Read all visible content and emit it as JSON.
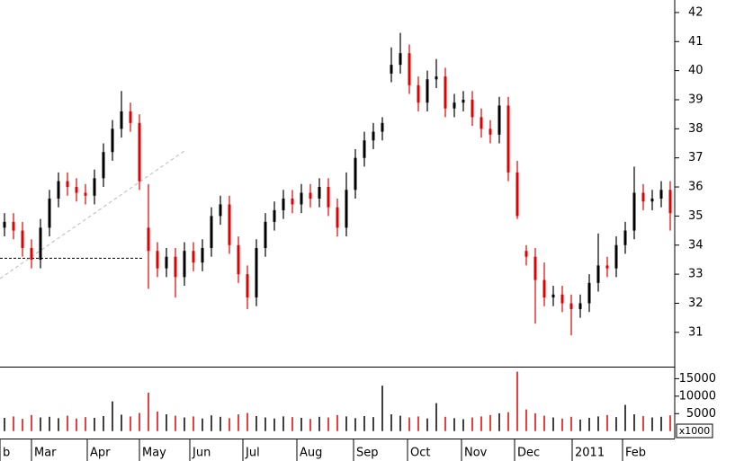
{
  "chart_data": {
    "type": "ohlc",
    "up_color": "#000000",
    "down_color": "#e00000",
    "xlim": [
      0,
      75
    ],
    "xticks": [
      {
        "value": 0,
        "label": "b"
      },
      {
        "value": 3.5,
        "label": "Mar"
      },
      {
        "value": 9.7,
        "label": "Apr"
      },
      {
        "value": 15.5,
        "label": "May"
      },
      {
        "value": 21.1,
        "label": "Jun"
      },
      {
        "value": 27,
        "label": "Jul"
      },
      {
        "value": 33,
        "label": "Aug"
      },
      {
        "value": 39.3,
        "label": "Sep"
      },
      {
        "value": 45.3,
        "label": "Oct"
      },
      {
        "value": 51.3,
        "label": "Nov"
      },
      {
        "value": 57.2,
        "label": "Dec"
      },
      {
        "value": 63.6,
        "label": "2011"
      },
      {
        "value": 69.2,
        "label": "Feb"
      }
    ],
    "ylim": [
      29.82,
      42.43
    ],
    "yticks": [
      31,
      32,
      33,
      34,
      35,
      36,
      37,
      38,
      39,
      40,
      41,
      42
    ],
    "open": [
      34.6,
      34.8,
      34.5,
      33.9,
      33.5,
      34.6,
      35.6,
      36.2,
      36.0,
      35.8,
      35.7,
      36.3,
      37.2,
      38.0,
      38.6,
      38.2,
      34.6,
      33.8,
      33.2,
      33.6,
      32.9,
      33.8,
      33.4,
      33.9,
      35.0,
      35.4,
      34.0,
      33.0,
      32.2,
      33.9,
      34.8,
      35.2,
      35.6,
      35.4,
      35.8,
      35.6,
      36.0,
      35.3,
      34.6,
      35.9,
      37.0,
      37.6,
      37.9,
      39.9,
      40.2,
      40.6,
      39.5,
      38.9,
      39.7,
      39.8,
      38.7,
      38.9,
      39.0,
      38.4,
      38.0,
      37.8,
      38.8,
      36.5,
      33.8,
      33.6,
      32.8,
      32.2,
      32.3,
      32.0,
      31.8,
      32.0,
      32.7,
      33.3,
      33.2,
      34.0,
      34.5,
      35.8,
      35.5,
      35.6,
      35.9
    ],
    "high": [
      35.1,
      35.1,
      34.8,
      34.2,
      34.9,
      35.9,
      36.5,
      36.5,
      36.3,
      36.1,
      36.6,
      37.5,
      38.3,
      39.3,
      38.9,
      38.5,
      36.1,
      34.1,
      33.9,
      33.9,
      34.1,
      34.1,
      34.2,
      35.3,
      35.7,
      35.7,
      34.3,
      33.3,
      34.2,
      35.1,
      35.5,
      35.9,
      35.9,
      36.1,
      36.1,
      36.3,
      36.3,
      35.6,
      36.5,
      37.3,
      37.9,
      38.2,
      38.4,
      40.8,
      41.3,
      40.9,
      39.8,
      40.0,
      40.4,
      40.1,
      39.2,
      39.3,
      39.3,
      38.7,
      38.3,
      39.1,
      39.1,
      36.9,
      34.0,
      33.9,
      33.4,
      32.6,
      32.6,
      32.3,
      32.3,
      33.0,
      34.4,
      33.6,
      34.3,
      34.8,
      36.7,
      36.1,
      35.9,
      36.2,
      36.2
    ],
    "low": [
      34.3,
      34.2,
      33.6,
      33.2,
      33.2,
      34.3,
      35.3,
      35.7,
      35.5,
      35.4,
      35.4,
      36.0,
      36.9,
      37.7,
      37.9,
      35.9,
      32.5,
      32.9,
      32.9,
      32.2,
      32.6,
      33.1,
      33.1,
      33.6,
      34.7,
      33.7,
      32.7,
      31.8,
      31.9,
      33.6,
      34.5,
      34.9,
      35.1,
      35.1,
      35.3,
      35.3,
      35.0,
      34.3,
      34.3,
      35.6,
      36.7,
      37.3,
      37.6,
      39.6,
      39.9,
      39.2,
      38.6,
      38.6,
      39.4,
      38.4,
      38.4,
      38.6,
      38.1,
      37.7,
      37.5,
      37.5,
      36.2,
      34.9,
      33.3,
      31.3,
      31.9,
      31.9,
      31.7,
      30.9,
      31.5,
      31.7,
      32.4,
      32.9,
      32.9,
      33.7,
      34.2,
      35.2,
      35.2,
      35.3,
      34.5
    ],
    "close": [
      34.8,
      34.5,
      33.9,
      33.5,
      34.6,
      35.6,
      36.2,
      36.0,
      35.8,
      35.7,
      36.3,
      37.2,
      38.0,
      38.6,
      38.2,
      36.2,
      33.8,
      33.2,
      33.6,
      32.9,
      33.8,
      33.4,
      33.9,
      35.0,
      35.4,
      34.0,
      33.0,
      32.2,
      33.9,
      34.8,
      35.2,
      35.6,
      35.4,
      35.8,
      35.6,
      36.0,
      35.3,
      34.6,
      35.9,
      37.0,
      37.6,
      37.9,
      38.2,
      40.2,
      40.6,
      39.5,
      38.9,
      39.7,
      39.8,
      38.7,
      38.9,
      39.0,
      38.4,
      38.0,
      37.8,
      38.8,
      36.5,
      35.0,
      33.6,
      32.8,
      32.2,
      32.3,
      32.0,
      31.8,
      32.0,
      32.7,
      33.3,
      33.2,
      34.0,
      34.5,
      35.8,
      35.5,
      35.6,
      35.9,
      35.1
    ],
    "level_line": {
      "x": [
        0,
        15.8
      ],
      "y": 33.55
    },
    "trendline": {
      "x": [
        0,
        20.5
      ],
      "y": [
        32.85,
        37.24
      ]
    },
    "volume": {
      "label": "x1000",
      "ylim": [
        -1100,
        17930
      ],
      "yticks": [
        5000,
        10000,
        15000
      ],
      "values": [
        3800,
        4200,
        3500,
        4600,
        3900,
        4100,
        3700,
        4400,
        3600,
        4000,
        3800,
        4300,
        8500,
        4700,
        4200,
        5200,
        11000,
        5600,
        4800,
        4400,
        3900,
        4200,
        3600,
        4500,
        4100,
        3700,
        4800,
        5200,
        4300,
        3900,
        3600,
        4200,
        4000,
        3800,
        3500,
        4100,
        3900,
        4600,
        4200,
        3700,
        4300,
        4000,
        13000,
        4800,
        4400,
        3900,
        4200,
        3600,
        8000,
        4100,
        3700,
        3400,
        3900,
        4200,
        4600,
        5100,
        5400,
        17000,
        6200,
        5100,
        4400,
        3900,
        3600,
        4100,
        3300,
        3800,
        4200,
        4600,
        4000,
        7500,
        4800,
        4300,
        3900,
        4100,
        4500
      ]
    }
  }
}
